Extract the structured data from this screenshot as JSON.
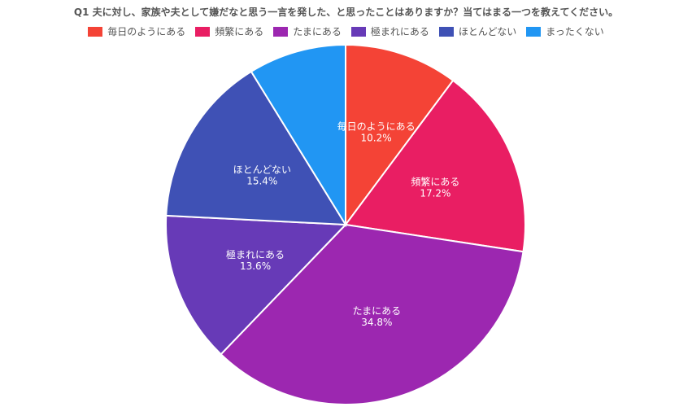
{
  "chart_data": {
    "type": "pie",
    "title": "Q1 夫に対し、家族や夫として嫌だなと思う一言を発した、と思ったことはありますか？当てはまる一つを教えてください。",
    "categories": [
      "毎日のようにある",
      "頻繁にある",
      "たまにある",
      "極まれにある",
      "ほとんどない",
      "まったくない"
    ],
    "values": [
      10.2,
      17.2,
      34.8,
      13.6,
      15.4,
      8.8
    ],
    "value_labels": [
      "10.2%",
      "17.2%",
      "34.8%",
      "13.6%",
      "15.4%",
      ""
    ],
    "colors": [
      "#f44336",
      "#e91e63",
      "#9c27b0",
      "#673ab7",
      "#3f51b5",
      "#2196f3"
    ],
    "legend_position": "top",
    "start_angle": "top, clockwise"
  }
}
